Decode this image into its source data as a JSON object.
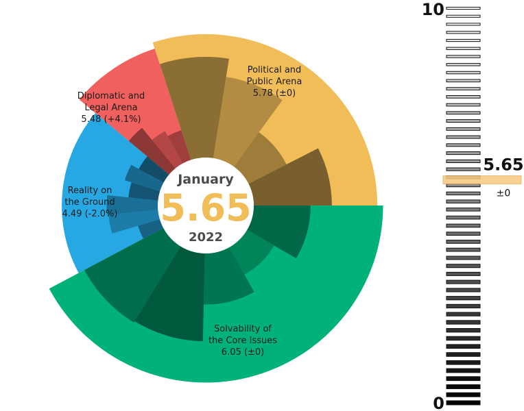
{
  "center": {
    "month": "January",
    "value": "5.65",
    "year": "2022",
    "value_color": "#F0BD59"
  },
  "scale": {
    "max_label": "10",
    "min_label": "0",
    "value_label": "5.65",
    "change_label": "±0",
    "value": 5.65,
    "highlight_color": "#F5C97E"
  },
  "colors": {
    "political": "#F0BD59",
    "diplomatic": "#F0605E",
    "reality": "#27A8E3",
    "solvability": "#00B27A"
  },
  "chart_data": {
    "type": "polar-area",
    "ylim": [
      0,
      10
    ],
    "segments": [
      {
        "name": "Political and Public Arena",
        "label_lines": [
          "Political and",
          "Public Arena",
          "5.78 (±0)"
        ],
        "value": 5.78,
        "change": "±0",
        "color": "#F0BD59",
        "sub_values": [
          7.1,
          5.8,
          3.0,
          5.5
        ]
      },
      {
        "name": "Diplomatic and Legal Arena",
        "label_lines": [
          "Diplomatic and",
          "Legal Arena",
          "5.48 (+4.1%)"
        ],
        "value": 5.48,
        "change": "+4.1%",
        "color": "#F0605E",
        "sub_values": [
          3.7,
          2.6,
          2.2
        ]
      },
      {
        "name": "Reality on the Ground",
        "label_lines": [
          "Reality on",
          "the Ground",
          "4.49 (-2.0%)"
        ],
        "value": 4.49,
        "change": "-2.0%",
        "color": "#27A8E3",
        "sub_values": [
          1.6,
          3.5,
          3.6,
          2.1,
          2.6,
          2.0
        ]
      },
      {
        "name": "Solvability of the Core Issues",
        "label_lines": [
          "Solvability of",
          "the Core Issues",
          "6.05 (±0)"
        ],
        "value": 6.05,
        "change": "±0",
        "color": "#00B27A",
        "sub_values": [
          4.0,
          2.2,
          3.6,
          6.2,
          6.3
        ]
      }
    ]
  }
}
